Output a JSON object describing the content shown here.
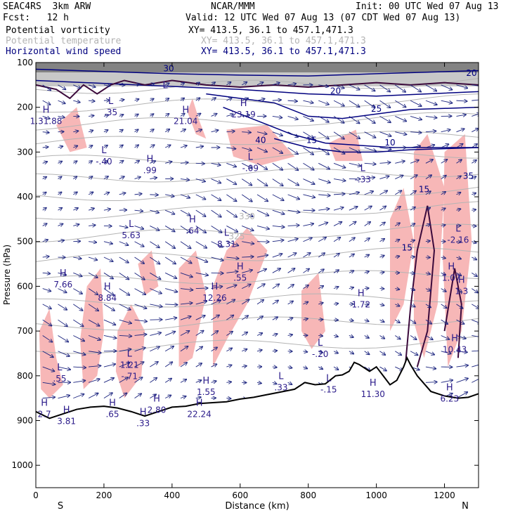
{
  "header": {
    "model": "SEAC4RS  3km ARW",
    "forecast": "Fcst:   12 h",
    "org": "NCAR/MMM",
    "init": "Init: 00 UTC Wed 07 Aug 13",
    "valid": "Valid: 12 UTC Wed 07 Aug 13 (07 CDT Wed 07 Aug 13)"
  },
  "fields": [
    {
      "label": "Potential vorticity",
      "xy": "XY= 413.5, 36.1 to 457.1,471.3",
      "color": "#000000"
    },
    {
      "label": "Potential temperature",
      "xy": "XY= 413.5, 36.1 to 457.1,471.3",
      "color": "#b4b4b4"
    },
    {
      "label": "Horizontal wind speed",
      "xy": "XY= 413.5, 36.1 to 457.1,471.3",
      "color": "#00007f"
    }
  ],
  "colors": {
    "pv_fill": "#f7b3b3",
    "pv_contour": "#3c0a3c",
    "theta": "#b4b4b4",
    "wind": "#1a237e",
    "terrain": "#000000"
  },
  "chart_data": {
    "type": "cross-section",
    "xlabel": "Distance (km)",
    "ylabel": "Pressure (hPa)",
    "xlim": [
      0,
      1300
    ],
    "ylim": [
      1050,
      100
    ],
    "xticks": [
      0,
      200,
      400,
      600,
      800,
      1000,
      1200
    ],
    "yticks": [
      100,
      200,
      300,
      400,
      500,
      600,
      700,
      800,
      900,
      1000
    ],
    "x_end_labels": {
      "left": "S",
      "right": "N"
    },
    "wind_contour_labels": [
      {
        "text": "30",
        "x": 390,
        "p": 120
      },
      {
        "text": "20",
        "x": 1300,
        "p": 130
      },
      {
        "text": "25",
        "x": 1000,
        "p": 210
      },
      {
        "text": "20",
        "x": 880,
        "p": 170
      },
      {
        "text": "15",
        "x": 810,
        "p": 280
      },
      {
        "text": "10",
        "x": 1040,
        "p": 285
      },
      {
        "text": "40",
        "x": 660,
        "p": 280
      },
      {
        "text": "35",
        "x": 1270,
        "p": 360
      },
      {
        "text": "15",
        "x": 1140,
        "p": 390
      },
      {
        "text": "15",
        "x": 1090,
        "p": 520
      }
    ],
    "theta_contour_labels": [
      {
        "text": "330",
        "x": 620,
        "p": 450
      },
      {
        "text": "325",
        "x": 590,
        "p": 495
      }
    ],
    "pv_extrema": [
      {
        "kind": "H",
        "value": "1.31.88",
        "x": 30,
        "p": 225
      },
      {
        "kind": "L",
        "value": ".35",
        "x": 220,
        "p": 205
      },
      {
        "kind": "L",
        "value": "",
        "x": 380,
        "p": 170
      },
      {
        "kind": "H",
        "value": "21.04",
        "x": 440,
        "p": 225
      },
      {
        "kind": "H",
        "value": "23.19",
        "x": 610,
        "p": 210
      },
      {
        "kind": "L",
        "value": "-.40",
        "x": 200,
        "p": 315
      },
      {
        "kind": "H",
        "value": ".99",
        "x": 335,
        "p": 335
      },
      {
        "kind": "L",
        "value": "-.09",
        "x": 630,
        "p": 330
      },
      {
        "kind": "L",
        "value": "-.33",
        "x": 960,
        "p": 355
      },
      {
        "kind": "L",
        "value": "5.63",
        "x": 280,
        "p": 480
      },
      {
        "kind": "H",
        "value": ".64",
        "x": 460,
        "p": 470
      },
      {
        "kind": "L",
        "value": "8.31",
        "x": 560,
        "p": 500
      },
      {
        "kind": "H",
        "value": ".55",
        "x": 600,
        "p": 575
      },
      {
        "kind": "H",
        "value": "7.66",
        "x": 80,
        "p": 590
      },
      {
        "kind": "H",
        "value": "8.84",
        "x": 210,
        "p": 620
      },
      {
        "kind": "H",
        "value": "12.26",
        "x": 525,
        "p": 620
      },
      {
        "kind": "H",
        "value": "1.72",
        "x": 955,
        "p": 635
      },
      {
        "kind": "L",
        "value": "-2.16",
        "x": 1240,
        "p": 490
      },
      {
        "kind": "H",
        "value": "1.07",
        "x": 1220,
        "p": 575
      },
      {
        "kind": "H",
        "value": "1.3",
        "x": 1250,
        "p": 605
      },
      {
        "kind": "H",
        "value": "10.43",
        "x": 1230,
        "p": 735
      },
      {
        "kind": "L",
        "value": "-.20",
        "x": 835,
        "p": 745
      },
      {
        "kind": "L",
        "value": "1.21",
        "x": 275,
        "p": 770
      },
      {
        "kind": "L",
        "value": "-.71",
        "x": 275,
        "p": 795
      },
      {
        "kind": "L",
        "value": ".55",
        "x": 70,
        "p": 800
      },
      {
        "kind": "L",
        "value": "-.15",
        "x": 860,
        "p": 825
      },
      {
        "kind": "L",
        "value": ".33",
        "x": 720,
        "p": 820
      },
      {
        "kind": "H",
        "value": "11.30",
        "x": 990,
        "p": 835
      },
      {
        "kind": "H",
        "value": "1.55",
        "x": 500,
        "p": 830
      },
      {
        "kind": "H",
        "value": "3.81",
        "x": 90,
        "p": 895
      },
      {
        "kind": "H",
        "value": ".65",
        "x": 225,
        "p": 880
      },
      {
        "kind": "H",
        "value": "2.80",
        "x": 355,
        "p": 870
      },
      {
        "kind": "H",
        "value": "22.24",
        "x": 480,
        "p": 880
      },
      {
        "kind": "H",
        "value": "6.23",
        "x": 1215,
        "p": 845
      },
      {
        "kind": "H",
        "value": ".33",
        "x": 315,
        "p": 900
      },
      {
        "kind": "H",
        "value": "2.7",
        "x": 25,
        "p": 880
      }
    ],
    "terrain_surface": [
      [
        0,
        880
      ],
      [
        40,
        895
      ],
      [
        80,
        885
      ],
      [
        120,
        875
      ],
      [
        160,
        870
      ],
      [
        200,
        868
      ],
      [
        240,
        872
      ],
      [
        280,
        880
      ],
      [
        320,
        890
      ],
      [
        360,
        880
      ],
      [
        400,
        870
      ],
      [
        440,
        868
      ],
      [
        480,
        862
      ],
      [
        520,
        860
      ],
      [
        560,
        858
      ],
      [
        600,
        852
      ],
      [
        640,
        848
      ],
      [
        680,
        842
      ],
      [
        720,
        836
      ],
      [
        760,
        830
      ],
      [
        790,
        815
      ],
      [
        820,
        820
      ],
      [
        850,
        818
      ],
      [
        880,
        800
      ],
      [
        900,
        798
      ],
      [
        920,
        790
      ],
      [
        935,
        770
      ],
      [
        950,
        775
      ],
      [
        960,
        780
      ],
      [
        980,
        790
      ],
      [
        1000,
        780
      ],
      [
        1020,
        800
      ],
      [
        1040,
        820
      ],
      [
        1060,
        810
      ],
      [
        1080,
        780
      ],
      [
        1090,
        760
      ],
      [
        1100,
        775
      ],
      [
        1120,
        800
      ],
      [
        1160,
        835
      ],
      [
        1200,
        845
      ],
      [
        1240,
        850
      ],
      [
        1270,
        848
      ],
      [
        1300,
        840
      ]
    ]
  }
}
